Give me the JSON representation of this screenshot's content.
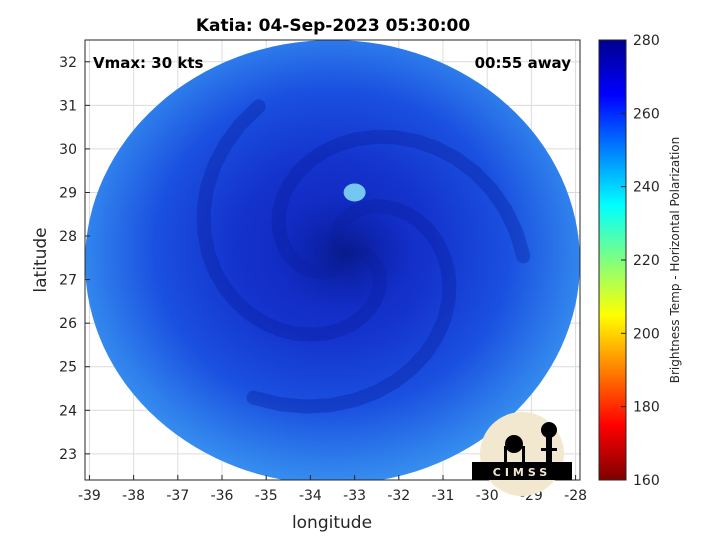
{
  "map": {
    "title": "Katia: 04-Sep-2023 05:30:00",
    "xlabel": "longitude",
    "ylabel": "latitude",
    "vmax_text": "Vmax: 30 kts",
    "away_text": "00:55 away",
    "x_ticks": [
      -39,
      -38,
      -37,
      -36,
      -35,
      -34,
      -33,
      -32,
      -31,
      -30,
      -29,
      -28
    ],
    "y_ticks": [
      23,
      24,
      25,
      26,
      27,
      28,
      29,
      30,
      31,
      32
    ],
    "xlim": [
      -39.1,
      -27.9
    ],
    "ylim": [
      22.4,
      32.5
    ],
    "grid": true,
    "swath": {
      "center_lon": -33.5,
      "center_lat": 27.4,
      "radius_lon": 5.6,
      "radius_lat": 5.1,
      "storm_eye_lon": -33.2,
      "storm_eye_lat": 27.6,
      "warm_spot_lon": -33.0,
      "warm_spot_lat": 29.0
    }
  },
  "colorbar": {
    "label": "Brightness Temp - Horizontal Polarization",
    "ticks": [
      160,
      180,
      200,
      220,
      240,
      260,
      280
    ],
    "range": [
      160,
      280
    ],
    "colors": [
      "#7f0000",
      "#ff0000",
      "#ff8000",
      "#ffff00",
      "#80ff80",
      "#00ffff",
      "#0080ff",
      "#0000ff",
      "#00008f"
    ]
  },
  "logo": {
    "text": "CIMSS"
  }
}
